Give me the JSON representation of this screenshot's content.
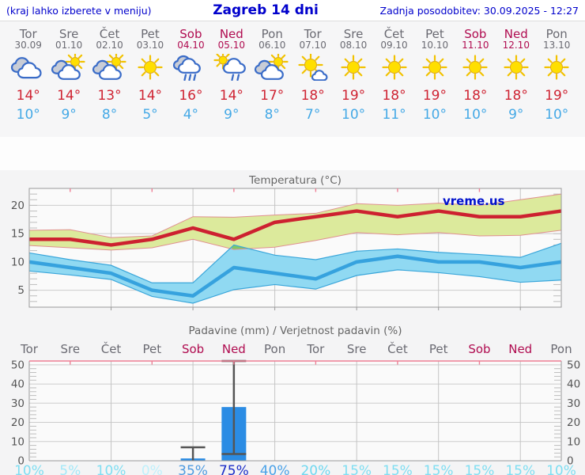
{
  "header": {
    "left_note": "(kraj lahko izberete v meniju)",
    "title": "Zagreb 14 dni",
    "updated": "Zadnja posodobitev: 30.09.2025 - 12:27"
  },
  "watermark": "vreme.us",
  "days": [
    {
      "name": "Tor",
      "date": "30.09",
      "weekend": false,
      "icon": "cloudy",
      "tmax": "14°",
      "tmin": "10°",
      "prob": "10%",
      "prob_color": "#7fdef2"
    },
    {
      "name": "Sre",
      "date": "01.10",
      "weekend": false,
      "icon": "partly",
      "tmax": "14°",
      "tmin": "9°",
      "prob": "5%",
      "prob_color": "#a3e8f8"
    },
    {
      "name": "Čet",
      "date": "02.10",
      "weekend": false,
      "icon": "partly",
      "tmax": "13°",
      "tmin": "8°",
      "prob": "10%",
      "prob_color": "#7fdef2"
    },
    {
      "name": "Pet",
      "date": "03.10",
      "weekend": false,
      "icon": "sunny",
      "tmax": "14°",
      "tmin": "5°",
      "prob": "0%",
      "prob_color": "#bff0fb"
    },
    {
      "name": "Sob",
      "date": "04.10",
      "weekend": true,
      "icon": "rain",
      "tmax": "16°",
      "tmin": "4°",
      "prob": "35%",
      "prob_color": "#4f9be0"
    },
    {
      "name": "Ned",
      "date": "05.10",
      "weekend": true,
      "icon": "sunrain",
      "tmax": "14°",
      "tmin": "9°",
      "prob": "75%",
      "prob_color": "#1c2ec8"
    },
    {
      "name": "Pon",
      "date": "06.10",
      "weekend": false,
      "icon": "partly",
      "tmax": "17°",
      "tmin": "8°",
      "prob": "40%",
      "prob_color": "#4ba2e8"
    },
    {
      "name": "Tor",
      "date": "07.10",
      "weekend": false,
      "icon": "mostlysunny",
      "tmax": "18°",
      "tmin": "7°",
      "prob": "20%",
      "prob_color": "#6fd8f0"
    },
    {
      "name": "Sre",
      "date": "08.10",
      "weekend": false,
      "icon": "sunny",
      "tmax": "19°",
      "tmin": "10°",
      "prob": "15%",
      "prob_color": "#7fdef2"
    },
    {
      "name": "Čet",
      "date": "09.10",
      "weekend": false,
      "icon": "sunny",
      "tmax": "18°",
      "tmin": "11°",
      "prob": "15%",
      "prob_color": "#7fdef2"
    },
    {
      "name": "Pet",
      "date": "10.10",
      "weekend": false,
      "icon": "sunny",
      "tmax": "19°",
      "tmin": "10°",
      "prob": "15%",
      "prob_color": "#7fdef2"
    },
    {
      "name": "Sob",
      "date": "11.10",
      "weekend": true,
      "icon": "sunny",
      "tmax": "18°",
      "tmin": "10°",
      "prob": "15%",
      "prob_color": "#7fdef2"
    },
    {
      "name": "Ned",
      "date": "12.10",
      "weekend": true,
      "icon": "sunny",
      "tmax": "18°",
      "tmin": "9°",
      "prob": "15%",
      "prob_color": "#7fdef2"
    },
    {
      "name": "Pon",
      "date": "13.10",
      "weekend": false,
      "icon": "sunny",
      "tmax": "19°",
      "tmin": "10°",
      "prob": "10%",
      "prob_color": "#7fdef2"
    }
  ],
  "chart_data": [
    {
      "type": "line",
      "title": "Temperatura (°C)",
      "categories": [
        "Tor",
        "Sre",
        "Čet",
        "Pet",
        "Sob",
        "Ned",
        "Pon",
        "Tor",
        "Sre",
        "Čet",
        "Pet",
        "Sob",
        "Ned",
        "Pon"
      ],
      "ylim": [
        2,
        23
      ],
      "yticks": [
        5,
        10,
        15,
        20
      ],
      "grid": true,
      "series": [
        {
          "name": "max",
          "values": [
            14,
            14,
            13,
            14,
            16,
            14,
            17,
            18,
            19,
            18,
            19,
            18,
            18,
            19
          ]
        },
        {
          "name": "max_band_upper",
          "values": [
            15.6,
            15.7,
            14.3,
            14.6,
            18,
            17.9,
            18.3,
            18.6,
            20.3,
            20,
            20.4,
            20,
            21,
            22
          ]
        },
        {
          "name": "max_band_lower",
          "values": [
            12.9,
            12.5,
            12.1,
            12.5,
            14,
            12.2,
            12.6,
            13.8,
            15.2,
            14.8,
            15.2,
            14.6,
            14.7,
            15.6
          ]
        },
        {
          "name": "min",
          "values": [
            10,
            9,
            8,
            5,
            4,
            9,
            8,
            7,
            10,
            11,
            10,
            10,
            9,
            10
          ]
        },
        {
          "name": "min_band_upper",
          "values": [
            11.6,
            10.4,
            9.4,
            6.3,
            6.3,
            13,
            11.2,
            10.4,
            11.9,
            12.3,
            11.7,
            11.3,
            10.8,
            13.3
          ]
        },
        {
          "name": "min_band_lower",
          "values": [
            8.4,
            7.7,
            6.9,
            3.9,
            2.7,
            5.1,
            6,
            5.2,
            7.6,
            8.6,
            8.1,
            7.4,
            6.4,
            6.8
          ]
        }
      ]
    },
    {
      "type": "bar",
      "title": "Padavine (mm) / Verjetnost padavin (%)",
      "categories": [
        "Tor",
        "Sre",
        "Čet",
        "Pet",
        "Sob",
        "Ned",
        "Pon",
        "Tor",
        "Sre",
        "Čet",
        "Pet",
        "Sob",
        "Ned",
        "Pon"
      ],
      "ylim": [
        0,
        52
      ],
      "yticks": [
        0,
        10,
        20,
        30,
        40,
        50
      ],
      "grid": true,
      "values": [
        0,
        0,
        0,
        0,
        1.2,
        28,
        0,
        0,
        0,
        0,
        0,
        0,
        0,
        0
      ],
      "whiskers": [
        null,
        null,
        null,
        null,
        {
          "low": 0,
          "high": 7
        },
        {
          "low": 3.5,
          "high": 52
        },
        null,
        null,
        null,
        null,
        null,
        null,
        null,
        null
      ],
      "probabilities": [
        10,
        5,
        10,
        0,
        35,
        75,
        40,
        20,
        15,
        15,
        15,
        15,
        15,
        10
      ]
    }
  ],
  "colors": {
    "link": "#0000cc",
    "weekday": "#6a6a72",
    "weekend": "#b00c50",
    "tmax": "#cf2433",
    "tmin": "#45a9e6",
    "max_line": "#cd2130",
    "max_band": "#dcea9c",
    "max_band_edge": "#e09090",
    "min_line": "#36a2de",
    "min_band": "#90d9f2",
    "min_band_edge": "#3aa6da",
    "overlap_band": "#7dc868",
    "bar": "#2b8ce4",
    "whisker": "#555555",
    "grid": "#cccccc",
    "vgrid": "#c4c4c4",
    "border": "#999999",
    "pink_axis": "#ee7f95",
    "axis_text": "#555555",
    "title_text": "#666666",
    "plot_bg": "#fafafa"
  }
}
